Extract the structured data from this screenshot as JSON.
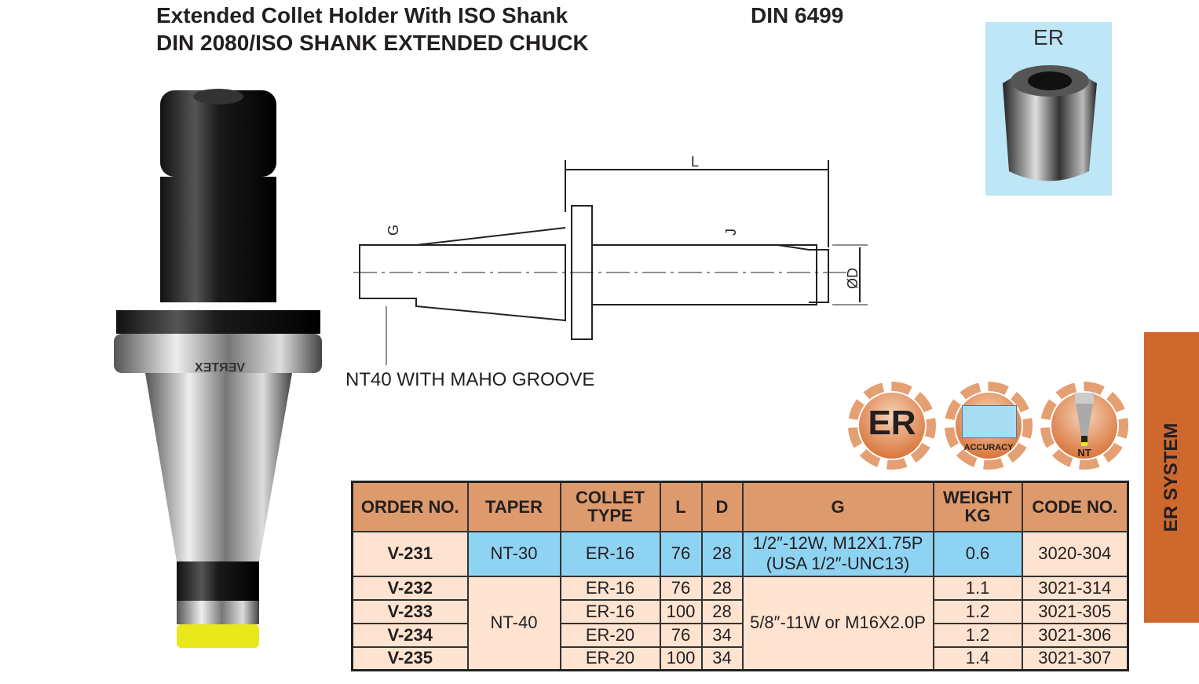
{
  "header": {
    "title_line1": "Extended Collet Holder With ISO Shank",
    "title_line2": "DIN 2080/ISO SHANK EXTENDED CHUCK",
    "standard": "DIN 6499"
  },
  "collet_image": {
    "label": "ER"
  },
  "photo": {
    "brand_mark": "VERTEX"
  },
  "drawing": {
    "dim_L": "L",
    "dim_G": "G",
    "dim_J": "J",
    "dim_D": "ØD",
    "note": "NT40 WITH MAHO GROOVE"
  },
  "badges": [
    {
      "label": "ER"
    },
    {
      "label": "ACCURACY"
    },
    {
      "label": "NT"
    }
  ],
  "side_tab": {
    "label": "ER SYSTEM",
    "color": "#cf682d"
  },
  "table": {
    "headers": [
      "ORDER NO.",
      "TAPER",
      "COLLET TYPE",
      "L",
      "D",
      "G",
      "WEIGHT KG",
      "CODE NO."
    ],
    "rows": [
      {
        "order": "V-231",
        "taper": "NT-30",
        "collet": "ER-16",
        "L": "76",
        "D": "28",
        "G1": "1/2″-12W, M12X1.75P",
        "G2": "(USA 1/2″-UNC13)",
        "weight": "0.6",
        "code": "3020-304"
      },
      {
        "order": "V-232",
        "taper": "NT-40",
        "collet": "ER-16",
        "L": "76",
        "D": "28",
        "G": "5/8″-11W or M16X2.0P",
        "weight": "1.1",
        "code": "3021-314"
      },
      {
        "order": "V-233",
        "collet": "ER-16",
        "L": "100",
        "D": "28",
        "weight": "1.2",
        "code": "3021-305"
      },
      {
        "order": "V-234",
        "collet": "ER-20",
        "L": "76",
        "D": "34",
        "weight": "1.2",
        "code": "3021-306"
      },
      {
        "order": "V-235",
        "collet": "ER-20",
        "L": "100",
        "D": "34",
        "weight": "1.4",
        "code": "3021-307"
      }
    ]
  }
}
